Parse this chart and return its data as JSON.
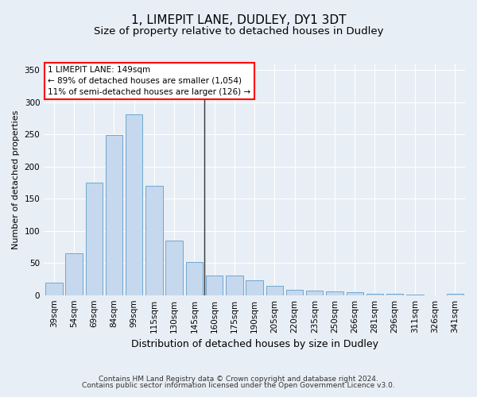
{
  "title": "1, LIMEPIT LANE, DUDLEY, DY1 3DT",
  "subtitle": "Size of property relative to detached houses in Dudley",
  "xlabel": "Distribution of detached houses by size in Dudley",
  "ylabel": "Number of detached properties",
  "categories": [
    "39sqm",
    "54sqm",
    "69sqm",
    "84sqm",
    "99sqm",
    "115sqm",
    "130sqm",
    "145sqm",
    "160sqm",
    "175sqm",
    "190sqm",
    "205sqm",
    "220sqm",
    "235sqm",
    "250sqm",
    "266sqm",
    "281sqm",
    "296sqm",
    "311sqm",
    "326sqm",
    "341sqm"
  ],
  "values": [
    19,
    65,
    175,
    249,
    281,
    170,
    85,
    52,
    30,
    30,
    23,
    14,
    8,
    7,
    6,
    5,
    2,
    2,
    1,
    0,
    2
  ],
  "bar_color": "#c5d8ed",
  "bar_edge_color": "#6fa8d0",
  "vline_color": "#333333",
  "ylim": [
    0,
    360
  ],
  "yticks": [
    0,
    50,
    100,
    150,
    200,
    250,
    300,
    350
  ],
  "annotation_title": "1 LIMEPIT LANE: 149sqm",
  "annotation_line1": "← 89% of detached houses are smaller (1,054)",
  "annotation_line2": "11% of semi-detached houses are larger (126) →",
  "footer1": "Contains HM Land Registry data © Crown copyright and database right 2024.",
  "footer2": "Contains public sector information licensed under the Open Government Licence v3.0.",
  "bg_color": "#e8eef5",
  "grid_color": "#ffffff",
  "title_fontsize": 11,
  "subtitle_fontsize": 9.5,
  "xlabel_fontsize": 9,
  "ylabel_fontsize": 8,
  "tick_fontsize": 7.5,
  "annotation_fontsize": 7.5,
  "footer_fontsize": 6.5
}
